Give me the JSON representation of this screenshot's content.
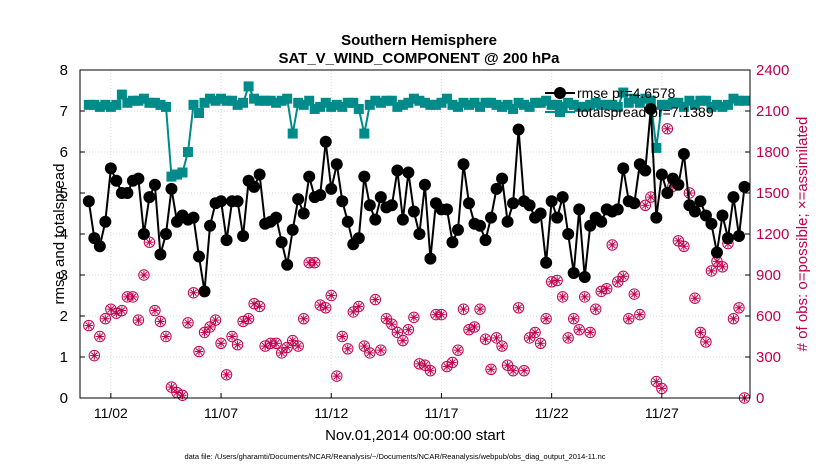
{
  "chart_data": {
    "type": "line",
    "title": "Southern Hemisphere",
    "subtitle": "SAT_V_WIND_COMPONENT @ 200 hPa",
    "xlabel": "Nov.01,2014 00:00:00 start",
    "ylabel_left": "rmse and totalspread",
    "ylabel_right": "# of obs: o=possible; ×=assimilated",
    "ylim_left": [
      0,
      8
    ],
    "ylim_right": [
      0,
      2400
    ],
    "yticks_left": [
      "0",
      "1",
      "2",
      "3",
      "4",
      "5",
      "6",
      "7",
      "8"
    ],
    "yticks_right": [
      "0",
      "300",
      "600",
      "900",
      "1200",
      "1500",
      "1800",
      "2100",
      "2400"
    ],
    "xlim": [
      0.6,
      31.0
    ],
    "xtick_labels": [
      "11/02",
      "11/07",
      "11/12",
      "11/17",
      "11/22",
      "11/27"
    ],
    "xtick_values": [
      2,
      7,
      12,
      17,
      22,
      27
    ],
    "grid": true,
    "legend_position": "top-right",
    "colors": {
      "rmse": "#000000",
      "totalspread": "#008b8b",
      "obs": "#c0004e"
    },
    "series": [
      {
        "name": "rmse pr=4.6578",
        "axis": "left",
        "x": [
          1.0,
          1.25,
          1.5,
          1.75,
          2.0,
          2.25,
          2.5,
          2.75,
          3.0,
          3.25,
          3.5,
          3.75,
          4.0,
          4.25,
          4.5,
          4.75,
          5.0,
          5.25,
          5.5,
          5.75,
          6.0,
          6.25,
          6.5,
          6.75,
          7.0,
          7.25,
          7.5,
          7.75,
          8.0,
          8.25,
          8.5,
          8.75,
          9.0,
          9.25,
          9.5,
          9.75,
          10.0,
          10.25,
          10.5,
          10.75,
          11.0,
          11.25,
          11.5,
          11.75,
          12.0,
          12.25,
          12.5,
          12.75,
          13.0,
          13.25,
          13.5,
          13.75,
          14.0,
          14.25,
          14.5,
          14.75,
          15.0,
          15.25,
          15.5,
          15.75,
          16.0,
          16.25,
          16.5,
          16.75,
          17.0,
          17.25,
          17.5,
          17.75,
          18.0,
          18.25,
          18.5,
          18.75,
          19.0,
          19.25,
          19.5,
          19.75,
          20.0,
          20.25,
          20.5,
          20.75,
          21.0,
          21.25,
          21.5,
          21.75,
          22.0,
          22.25,
          22.5,
          22.75,
          23.0,
          23.25,
          23.5,
          23.75,
          24.0,
          24.25,
          24.5,
          24.75,
          25.0,
          25.25,
          25.5,
          25.75,
          26.0,
          26.25,
          26.5,
          26.75,
          27.0,
          27.25,
          27.5,
          27.75,
          28.0,
          28.25,
          28.5,
          28.75,
          29.0,
          29.25,
          29.5,
          29.75,
          30.0,
          30.25,
          30.5,
          30.75
        ],
        "y": [
          4.8,
          3.9,
          3.7,
          4.3,
          5.6,
          5.3,
          5.0,
          5.0,
          5.3,
          5.35,
          4.0,
          4.9,
          5.2,
          3.5,
          4.0,
          5.1,
          4.3,
          4.45,
          4.35,
          4.4,
          3.45,
          2.6,
          4.2,
          4.75,
          4.8,
          3.85,
          4.8,
          4.8,
          3.95,
          5.3,
          5.15,
          5.45,
          4.25,
          4.3,
          4.4,
          3.8,
          3.25,
          4.1,
          4.85,
          4.5,
          5.4,
          4.9,
          4.95,
          6.25,
          5.1,
          5.7,
          4.8,
          4.3,
          3.75,
          3.9,
          5.4,
          4.7,
          4.35,
          4.9,
          4.65,
          4.7,
          5.55,
          4.35,
          5.5,
          4.55,
          4.0,
          5.2,
          3.4,
          4.75,
          4.6,
          4.6,
          3.8,
          4.1,
          5.7,
          4.75,
          4.25,
          4.2,
          3.85,
          4.4,
          5.1,
          5.35,
          4.3,
          4.75,
          6.55,
          4.8,
          4.7,
          4.4,
          4.5,
          3.3,
          4.8,
          4.4,
          4.9,
          4.0,
          3.05,
          4.6,
          2.95,
          4.2,
          4.4,
          4.3,
          4.6,
          4.55,
          4.6,
          5.6,
          4.8,
          4.75,
          5.7,
          5.55,
          7.05,
          4.4,
          5.45,
          5.0,
          5.35,
          5.2,
          5.95,
          4.7,
          4.55,
          4.8,
          4.45,
          4.25,
          3.55,
          4.45,
          3.9,
          4.9,
          3.95,
          5.15
        ]
      },
      {
        "name": "totalspread pr=7.1389",
        "axis": "left",
        "x": [
          1.0,
          1.25,
          1.5,
          1.75,
          2.0,
          2.25,
          2.5,
          2.75,
          3.0,
          3.25,
          3.5,
          3.75,
          4.0,
          4.25,
          4.5,
          4.75,
          5.0,
          5.25,
          5.5,
          5.75,
          6.0,
          6.25,
          6.5,
          6.75,
          7.0,
          7.25,
          7.5,
          7.75,
          8.0,
          8.25,
          8.5,
          8.75,
          9.0,
          9.25,
          9.5,
          9.75,
          10.0,
          10.25,
          10.5,
          10.75,
          11.0,
          11.25,
          11.5,
          11.75,
          12.0,
          12.25,
          12.5,
          12.75,
          13.0,
          13.25,
          13.5,
          13.75,
          14.0,
          14.25,
          14.5,
          14.75,
          15.0,
          15.25,
          15.5,
          15.75,
          16.0,
          16.25,
          16.5,
          16.75,
          17.0,
          17.25,
          17.5,
          17.75,
          18.0,
          18.25,
          18.5,
          18.75,
          19.0,
          19.25,
          19.5,
          19.75,
          20.0,
          20.25,
          20.5,
          20.75,
          21.0,
          21.25,
          21.5,
          21.75,
          22.0,
          22.25,
          22.5,
          22.75,
          23.0,
          23.25,
          23.5,
          23.75,
          24.0,
          24.25,
          24.5,
          24.75,
          25.0,
          25.25,
          25.5,
          25.75,
          26.0,
          26.25,
          26.5,
          26.75,
          27.0,
          27.25,
          27.5,
          27.75,
          28.0,
          28.25,
          28.5,
          28.75,
          29.0,
          29.25,
          29.5,
          29.75,
          30.0,
          30.25,
          30.5,
          30.75
        ],
        "y": [
          7.15,
          7.15,
          7.1,
          7.15,
          7.1,
          7.15,
          7.4,
          7.2,
          7.25,
          7.25,
          7.3,
          7.2,
          7.2,
          7.15,
          7.1,
          5.4,
          5.45,
          5.5,
          6.0,
          7.15,
          6.95,
          7.2,
          7.3,
          7.25,
          7.3,
          7.25,
          7.25,
          7.15,
          7.2,
          7.6,
          7.3,
          7.25,
          7.25,
          7.25,
          7.2,
          7.25,
          7.3,
          6.45,
          7.2,
          7.15,
          7.25,
          7.05,
          7.1,
          7.2,
          7.1,
          7.15,
          7.1,
          7.2,
          7.2,
          7.05,
          6.45,
          7.15,
          7.25,
          7.2,
          7.25,
          7.25,
          7.1,
          7.15,
          7.2,
          7.3,
          7.25,
          7.2,
          7.15,
          7.15,
          7.2,
          7.3,
          7.15,
          7.1,
          7.2,
          7.15,
          7.2,
          7.1,
          7.2,
          7.2,
          7.15,
          7.1,
          7.15,
          7.05,
          7.2,
          7.15,
          7.1,
          7.2,
          7.2,
          7.25,
          7.15,
          7.15,
          7.1,
          7.2,
          7.15,
          7.1,
          7.1,
          7.15,
          7.2,
          7.15,
          7.15,
          7.15,
          7.1,
          7.45,
          7.2,
          7.3,
          7.2,
          7.3,
          7.25,
          6.1,
          7.15,
          7.15,
          7.2,
          7.2,
          7.1,
          7.25,
          7.15,
          7.25,
          7.25,
          7.1,
          7.15,
          7.1,
          7.15,
          7.3,
          7.25,
          7.25
        ]
      },
      {
        "name": "obs possible",
        "axis": "right",
        "x": [
          1.0,
          1.25,
          1.5,
          1.75,
          2.0,
          2.25,
          2.5,
          2.75,
          3.0,
          3.25,
          3.5,
          3.75,
          4.0,
          4.25,
          4.5,
          4.75,
          5.0,
          5.25,
          5.5,
          5.75,
          6.0,
          6.25,
          6.5,
          6.75,
          7.0,
          7.25,
          7.5,
          7.75,
          8.0,
          8.25,
          8.5,
          8.75,
          9.0,
          9.25,
          9.5,
          9.75,
          10.0,
          10.25,
          10.5,
          10.75,
          11.0,
          11.25,
          11.5,
          11.75,
          12.0,
          12.25,
          12.5,
          12.75,
          13.0,
          13.25,
          13.5,
          13.75,
          14.0,
          14.25,
          14.5,
          14.75,
          15.0,
          15.25,
          15.5,
          15.75,
          16.0,
          16.25,
          16.5,
          16.75,
          17.0,
          17.25,
          17.5,
          17.75,
          18.0,
          18.25,
          18.5,
          18.75,
          19.0,
          19.25,
          19.5,
          19.75,
          20.0,
          20.25,
          20.5,
          20.75,
          21.0,
          21.25,
          21.5,
          21.75,
          22.0,
          22.25,
          22.5,
          22.75,
          23.0,
          23.25,
          23.5,
          23.75,
          24.0,
          24.25,
          24.5,
          24.75,
          25.0,
          25.25,
          25.5,
          25.75,
          26.0,
          26.25,
          26.5,
          26.75,
          27.0,
          27.25,
          27.5,
          27.75,
          28.0,
          28.25,
          28.5,
          28.75,
          29.0,
          29.25,
          29.5,
          29.75,
          30.0,
          30.25,
          30.5,
          30.75
        ],
        "y": [
          530,
          310,
          450,
          580,
          650,
          620,
          640,
          740,
          740,
          570,
          900,
          1140,
          640,
          560,
          450,
          80,
          40,
          20,
          550,
          770,
          340,
          480,
          520,
          570,
          400,
          170,
          450,
          390,
          560,
          580,
          690,
          670,
          380,
          400,
          400,
          330,
          370,
          420,
          380,
          580,
          990,
          990,
          680,
          660,
          750,
          160,
          450,
          360,
          630,
          670,
          380,
          330,
          720,
          350,
          580,
          540,
          480,
          420,
          500,
          590,
          250,
          240,
          200,
          610,
          610,
          230,
          260,
          350,
          650,
          500,
          520,
          650,
          430,
          210,
          440,
          380,
          240,
          200,
          660,
          200,
          440,
          480,
          400,
          580,
          850,
          860,
          740,
          440,
          580,
          500,
          740,
          480,
          650,
          780,
          800,
          1120,
          850,
          890,
          580,
          760,
          610,
          1410,
          1470,
          120,
          70,
          1970,
          1550,
          1150,
          1110,
          1500,
          730,
          480,
          410,
          930,
          1000,
          960,
          1130,
          580,
          660,
          0
        ],
        "assimilated": true
      }
    ],
    "legend": [
      "rmse pr=4.6578",
      "totalspread pr=7.1389"
    ],
    "footnote": "data file: /Users/gharamti/Documents/NCAR/Reanalysis/~/Documents/NCAR/Reanalysis/webpub/obs_diag_output_2014-11.nc"
  }
}
